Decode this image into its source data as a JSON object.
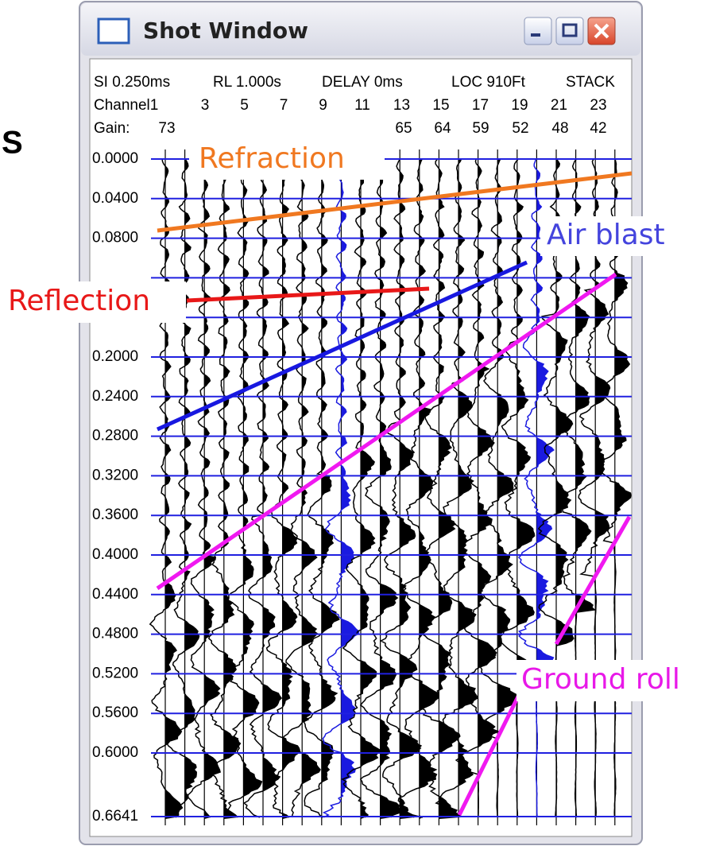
{
  "edge_text": "S",
  "window": {
    "title": "Shot Window"
  },
  "header": {
    "fields": [
      "SI 0.250ms",
      "RL 1.000s",
      "DELAY 0ms",
      "LOC 910Ft",
      "STACK"
    ],
    "channel_label": "Channel1",
    "channels": [
      "3",
      "5",
      "7",
      "9",
      "11",
      "13",
      "15",
      "17",
      "19",
      "21",
      "23"
    ],
    "gain_label": "Gain:",
    "gains": [
      "73",
      "65",
      "64",
      "59",
      "52",
      "48",
      "42"
    ]
  },
  "time_labels": [
    "0.0000",
    "0.0400",
    "0.0800",
    "0.2000",
    "0.2400",
    "0.2800",
    "0.3200",
    "0.3600",
    "0.4000",
    "0.4400",
    "0.4800",
    "0.5200",
    "0.5600",
    "0.6000",
    "0.6641"
  ],
  "annotations": [
    "Refraction",
    "Air blast",
    "Reflection",
    "Ground roll"
  ]
}
